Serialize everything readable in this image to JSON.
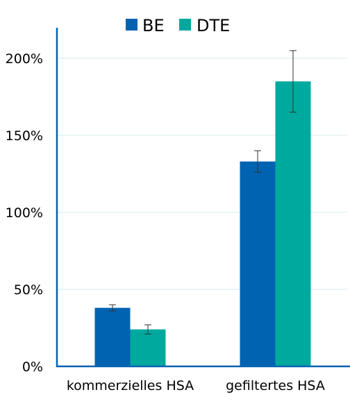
{
  "chart_data": {
    "type": "bar",
    "categories": [
      "kommerzielles HSA",
      "gefiltertes HSA"
    ],
    "series": [
      {
        "name": "BE",
        "values": [
          38,
          133
        ],
        "error": [
          2,
          7
        ],
        "color": "#0063b1"
      },
      {
        "name": "DTE",
        "values": [
          24,
          185
        ],
        "error": [
          3,
          20
        ],
        "color": "#00a99d"
      }
    ],
    "y_ticks": [
      {
        "value": 0,
        "label": "0%"
      },
      {
        "value": 50,
        "label": "50%"
      },
      {
        "value": 100,
        "label": "100%"
      },
      {
        "value": 150,
        "label": "150%"
      },
      {
        "value": 200,
        "label": "200%"
      }
    ],
    "ylim": [
      0,
      200
    ],
    "grid": true,
    "legend_position": "top",
    "axis_color": "#0063b1",
    "gridline_color": "#d9e8ec",
    "errorbar_color": "#333333"
  }
}
